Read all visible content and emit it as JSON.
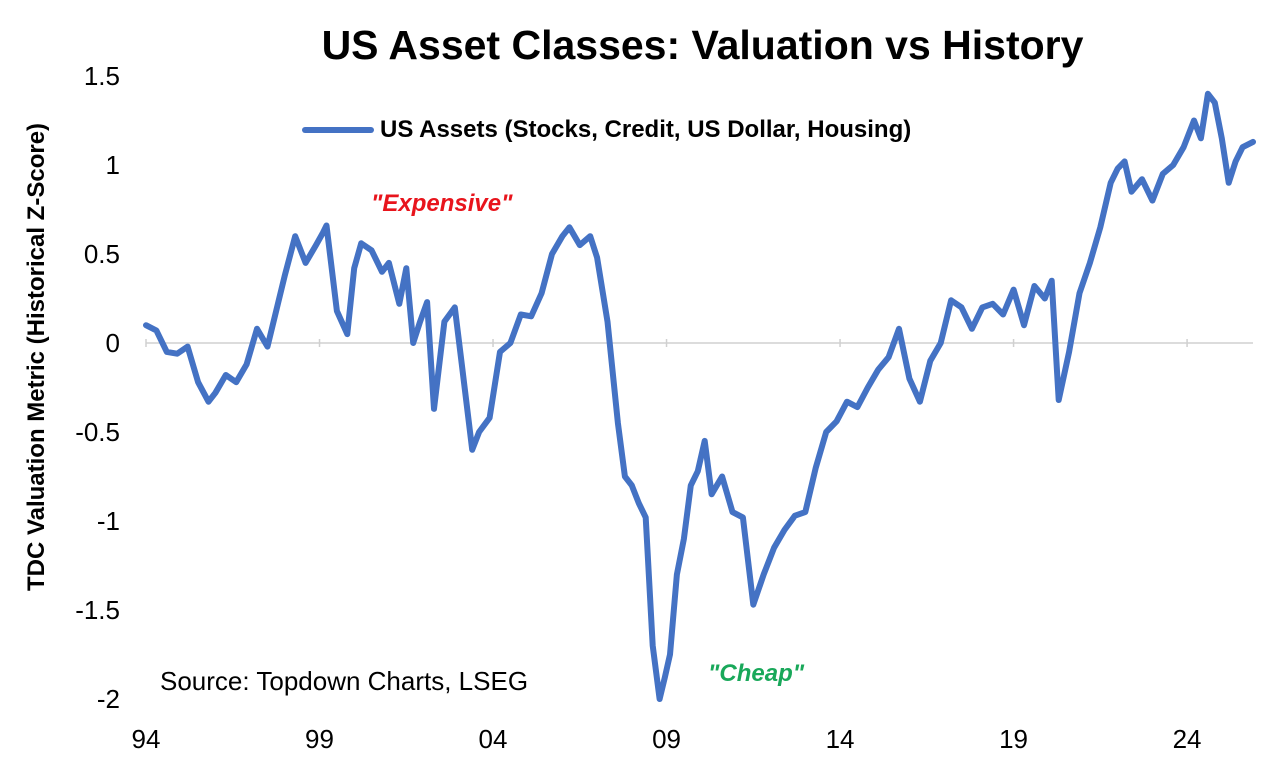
{
  "chart_data": {
    "type": "line",
    "title": "US Asset Classes: Valuation vs History",
    "ylabel": "TDC Valuation Metric (Historical Z-Score)",
    "ylim": [
      -2,
      1.5
    ],
    "yticks": [
      1.5,
      1,
      0.5,
      0,
      -0.5,
      -1,
      -1.5,
      -2
    ],
    "ytick_labels": [
      "1.5",
      "1",
      "0.5",
      "0",
      "-0.5",
      "-1",
      "-1.5",
      "-2"
    ],
    "xtick_labels": [
      "94",
      "99",
      "04",
      "09",
      "14",
      "19",
      "24"
    ],
    "xtick_years": [
      1994,
      1999,
      2004,
      2009,
      2014,
      2019,
      2024
    ],
    "xlim": [
      1994,
      2025.9
    ],
    "grid": false,
    "legend_position": "top",
    "series": [
      {
        "name": "US Assets (Stocks, Credit, US Dollar, Housing)",
        "color": "#4472c4",
        "x": [
          1994.0,
          1994.3,
          1994.6,
          1994.9,
          1995.2,
          1995.5,
          1995.8,
          1996.0,
          1996.3,
          1996.6,
          1996.9,
          1997.2,
          1997.5,
          1997.8,
          1998.0,
          1998.3,
          1998.6,
          1998.9,
          1999.1,
          1999.2,
          1999.5,
          1999.8,
          2000.0,
          2000.2,
          2000.5,
          2000.8,
          2001.0,
          2001.3,
          2001.5,
          2001.7,
          2001.9,
          2002.1,
          2002.3,
          2002.6,
          2002.9,
          2003.1,
          2003.4,
          2003.6,
          2003.9,
          2004.2,
          2004.5,
          2004.8,
          2005.1,
          2005.4,
          2005.7,
          2006.0,
          2006.2,
          2006.5,
          2006.8,
          2007.0,
          2007.3,
          2007.6,
          2007.8,
          2008.0,
          2008.2,
          2008.4,
          2008.6,
          2008.8,
          2008.95,
          2009.1,
          2009.3,
          2009.5,
          2009.7,
          2009.9,
          2010.1,
          2010.3,
          2010.6,
          2010.9,
          2011.2,
          2011.5,
          2011.8,
          2012.1,
          2012.4,
          2012.7,
          2013.0,
          2013.3,
          2013.6,
          2013.9,
          2014.2,
          2014.5,
          2014.8,
          2015.1,
          2015.4,
          2015.7,
          2016.0,
          2016.3,
          2016.6,
          2016.9,
          2017.2,
          2017.5,
          2017.8,
          2018.1,
          2018.4,
          2018.7,
          2019.0,
          2019.3,
          2019.6,
          2019.9,
          2020.1,
          2020.3,
          2020.6,
          2020.9,
          2021.2,
          2021.5,
          2021.8,
          2022.0,
          2022.2,
          2022.4,
          2022.7,
          2023.0,
          2023.3,
          2023.6,
          2023.9,
          2024.2,
          2024.4,
          2024.6,
          2024.8,
          2025.0,
          2025.2,
          2025.4,
          2025.6,
          2025.9
        ],
        "y": [
          0.1,
          0.07,
          -0.05,
          -0.06,
          -0.02,
          -0.22,
          -0.33,
          -0.28,
          -0.18,
          -0.22,
          -0.12,
          0.08,
          -0.02,
          0.22,
          0.38,
          0.6,
          0.45,
          0.55,
          0.62,
          0.66,
          0.18,
          0.05,
          0.42,
          0.56,
          0.52,
          0.4,
          0.45,
          0.22,
          0.42,
          0.0,
          0.12,
          0.23,
          -0.37,
          0.12,
          0.2,
          -0.12,
          -0.6,
          -0.5,
          -0.42,
          -0.05,
          0.0,
          0.16,
          0.15,
          0.28,
          0.5,
          0.6,
          0.65,
          0.55,
          0.6,
          0.48,
          0.12,
          -0.45,
          -0.75,
          -0.8,
          -0.9,
          -0.98,
          -1.7,
          -2.0,
          -1.88,
          -1.75,
          -1.3,
          -1.1,
          -0.8,
          -0.72,
          -0.55,
          -0.85,
          -0.75,
          -0.95,
          -0.98,
          -1.47,
          -1.3,
          -1.15,
          -1.05,
          -0.97,
          -0.95,
          -0.7,
          -0.5,
          -0.44,
          -0.33,
          -0.36,
          -0.25,
          -0.15,
          -0.08,
          0.08,
          -0.2,
          -0.33,
          -0.1,
          0.0,
          0.24,
          0.2,
          0.08,
          0.2,
          0.22,
          0.16,
          0.3,
          0.1,
          0.32,
          0.25,
          0.35,
          -0.32,
          -0.05,
          0.28,
          0.45,
          0.65,
          0.9,
          0.98,
          1.02,
          0.85,
          0.92,
          0.8,
          0.95,
          1.0,
          1.1,
          1.25,
          1.15,
          1.4,
          1.35,
          1.15,
          0.9,
          1.02,
          1.1,
          1.13
        ]
      }
    ],
    "annotations": [
      "\"Expensive\"",
      "\"Cheap\""
    ],
    "source": "Source: Topdown Charts, LSEG"
  }
}
